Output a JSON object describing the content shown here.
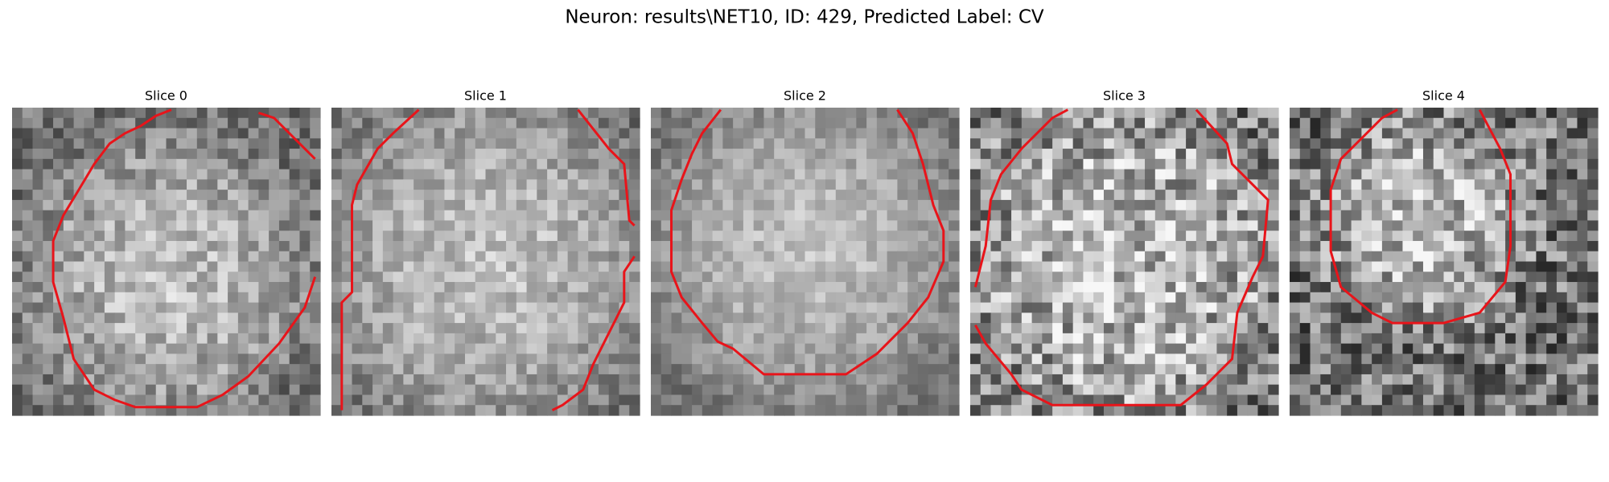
{
  "title": "Neuron: results\\NET10, ID: 429, Predicted Label: CV",
  "panels": [
    {
      "title": "Slice 0"
    },
    {
      "title": "Slice 1"
    },
    {
      "title": "Slice 2"
    },
    {
      "title": "Slice 3"
    },
    {
      "title": "Slice 4"
    }
  ]
}
